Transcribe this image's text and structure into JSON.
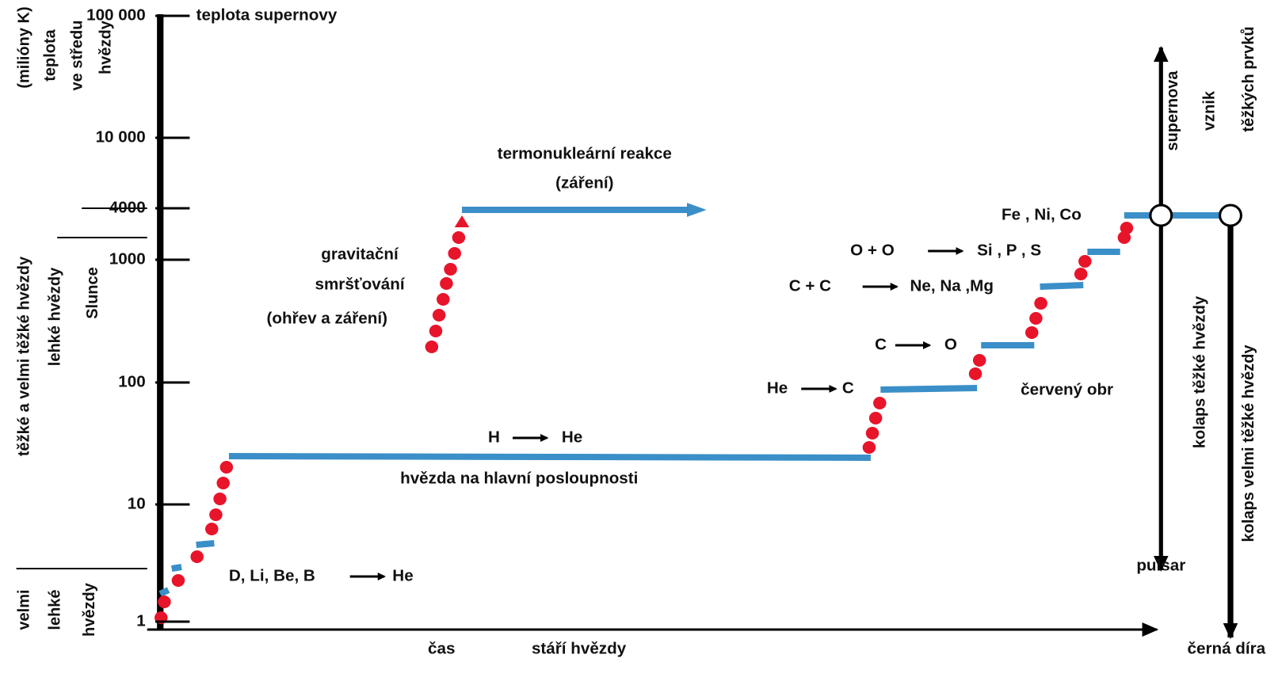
{
  "axis": {
    "ticks": [
      "1",
      "10",
      "100",
      "1000",
      "4000",
      "10 000",
      "100 000"
    ],
    "top_label": "teplota supernovy",
    "x_labels": [
      "čas",
      "stáří hvězdy"
    ]
  },
  "left_labels": [
    "(milióny K)",
    "teplota",
    "ve středu",
    "hvězdy",
    "těžké a velmi těžké hvězdy",
    "lehké hvězdy",
    "Slunce",
    "velmi",
    "lehké",
    "hvězdy"
  ],
  "right_labels": [
    "supernova",
    "vznik",
    "těžkých prvků",
    "kolaps těžké hvězdy",
    "kolaps velmi těžké hvězdy"
  ],
  "annotations": [
    "termonukleární reakce",
    "(záření)",
    "gravitační",
    "smršťování",
    "(ohřev a záření)",
    "hvězda na hlavní posloupnosti",
    "červený obr",
    "pulsar",
    "černá díra"
  ],
  "reactions": [
    {
      "from": "D, Li, Be, B",
      "to": "He"
    },
    {
      "from": "H",
      "to": "He"
    },
    {
      "from": "He",
      "to": "C"
    },
    {
      "from": "C",
      "to": "O"
    },
    {
      "from": "C + C",
      "to": "Ne, Na ,Mg"
    },
    {
      "from": "O + O",
      "to": "Si , P , S"
    }
  ],
  "final_elements": "Fe , Ni, Co"
}
